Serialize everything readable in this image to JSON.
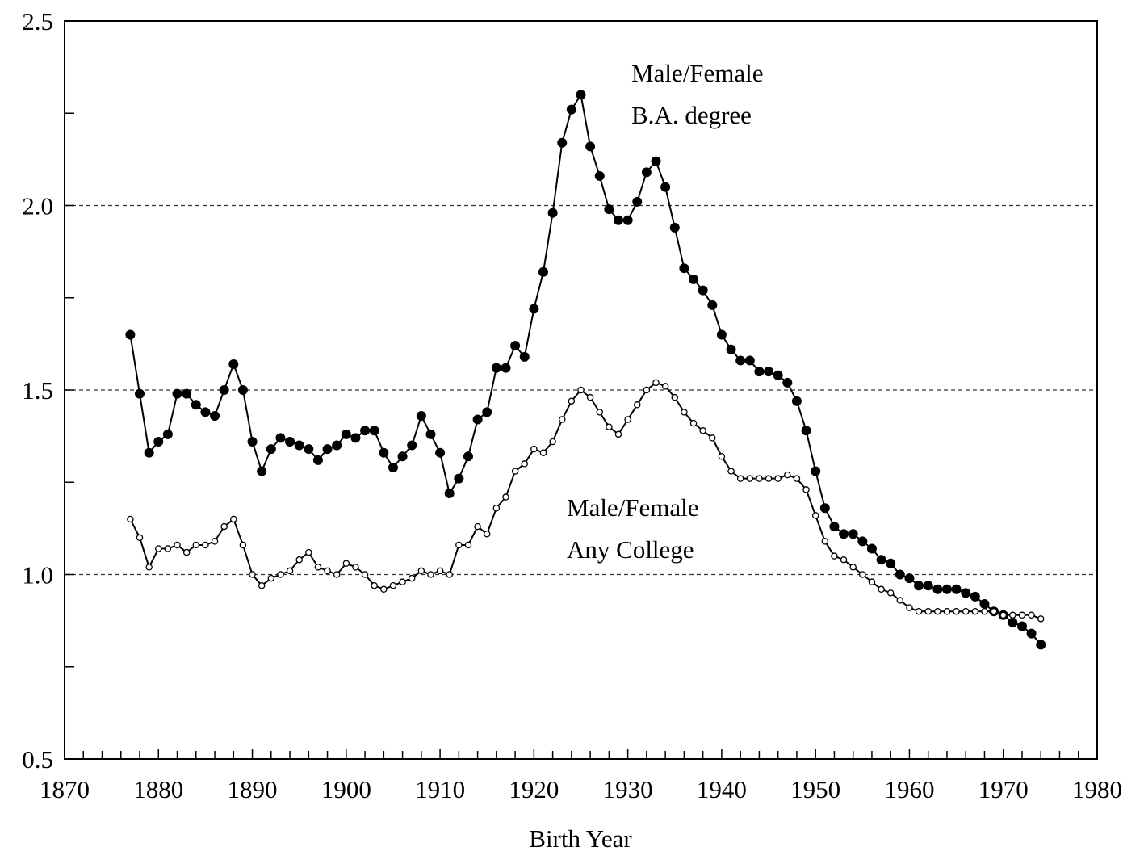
{
  "chart_data": {
    "type": "line",
    "xlabel": "Birth Year",
    "ylabel": "",
    "xlim": [
      1870,
      1980
    ],
    "ylim": [
      0.5,
      2.5
    ],
    "x_ticks": [
      "1870",
      "1880",
      "1890",
      "1900",
      "1910",
      "1920",
      "1930",
      "1940",
      "1950",
      "1960",
      "1970",
      "1980"
    ],
    "y_ticks": [
      "0.5",
      "1.0",
      "1.5",
      "2.0",
      "2.5"
    ],
    "y_gridlines": [
      1.0,
      1.5,
      2.0
    ],
    "grid": "dashed horizontal at 1.0, 1.5, 2.0",
    "x": [
      1877,
      1878,
      1879,
      1880,
      1881,
      1882,
      1883,
      1884,
      1885,
      1886,
      1887,
      1888,
      1889,
      1890,
      1891,
      1892,
      1893,
      1894,
      1895,
      1896,
      1897,
      1898,
      1899,
      1900,
      1901,
      1902,
      1903,
      1904,
      1905,
      1906,
      1907,
      1908,
      1909,
      1910,
      1911,
      1912,
      1913,
      1914,
      1915,
      1916,
      1917,
      1918,
      1919,
      1920,
      1921,
      1922,
      1923,
      1924,
      1925,
      1926,
      1927,
      1928,
      1929,
      1930,
      1931,
      1932,
      1933,
      1934,
      1935,
      1936,
      1937,
      1938,
      1939,
      1940,
      1941,
      1942,
      1943,
      1944,
      1945,
      1946,
      1947,
      1948,
      1949,
      1950,
      1951,
      1952,
      1953,
      1954,
      1955,
      1956,
      1957,
      1958,
      1959,
      1960,
      1961,
      1962,
      1963,
      1964,
      1965,
      1966,
      1967,
      1968,
      1969,
      1970,
      1971,
      1972,
      1973,
      1974
    ],
    "annotations": [
      {
        "lines": [
          "Male/Female",
          "B.A. degree"
        ],
        "series": 0
      },
      {
        "lines": [
          "Male/Female",
          "Any College"
        ],
        "series": 1
      }
    ],
    "series": [
      {
        "marker": "filled-circle",
        "color": "#000000",
        "values": [
          1.65,
          1.49,
          1.33,
          1.36,
          1.38,
          1.49,
          1.49,
          1.46,
          1.44,
          1.43,
          1.5,
          1.57,
          1.5,
          1.36,
          1.28,
          1.34,
          1.37,
          1.36,
          1.35,
          1.34,
          1.31,
          1.34,
          1.35,
          1.38,
          1.37,
          1.39,
          1.39,
          1.33,
          1.29,
          1.32,
          1.35,
          1.43,
          1.38,
          1.33,
          1.22,
          1.26,
          1.32,
          1.42,
          1.44,
          1.56,
          1.56,
          1.62,
          1.59,
          1.72,
          1.82,
          1.98,
          2.17,
          2.26,
          2.3,
          2.16,
          2.08,
          1.99,
          1.96,
          1.96,
          2.01,
          2.09,
          2.12,
          2.05,
          1.94,
          1.83,
          1.8,
          1.77,
          1.73,
          1.65,
          1.61,
          1.58,
          1.58,
          1.55,
          1.55,
          1.54,
          1.52,
          1.47,
          1.39,
          1.28,
          1.18,
          1.13,
          1.11,
          1.11,
          1.09,
          1.07,
          1.04,
          1.03,
          1.0,
          0.99,
          0.97,
          0.97,
          0.96,
          0.96,
          0.96,
          0.95,
          0.94,
          0.92,
          0.9,
          0.89,
          0.87,
          0.86,
          0.84,
          0.81
        ]
      },
      {
        "marker": "open-circle",
        "color": "#000000",
        "values": [
          1.15,
          1.1,
          1.02,
          1.07,
          1.07,
          1.08,
          1.06,
          1.08,
          1.08,
          1.09,
          1.13,
          1.15,
          1.08,
          1.0,
          0.97,
          0.99,
          1.0,
          1.01,
          1.04,
          1.06,
          1.02,
          1.01,
          1.0,
          1.03,
          1.02,
          1.0,
          0.97,
          0.96,
          0.97,
          0.98,
          0.99,
          1.01,
          1.0,
          1.01,
          1.0,
          1.08,
          1.08,
          1.13,
          1.11,
          1.18,
          1.21,
          1.28,
          1.3,
          1.34,
          1.33,
          1.36,
          1.42,
          1.47,
          1.5,
          1.48,
          1.44,
          1.4,
          1.38,
          1.42,
          1.46,
          1.5,
          1.52,
          1.51,
          1.48,
          1.44,
          1.41,
          1.39,
          1.37,
          1.32,
          1.28,
          1.26,
          1.26,
          1.26,
          1.26,
          1.26,
          1.27,
          1.26,
          1.23,
          1.16,
          1.09,
          1.05,
          1.04,
          1.02,
          1.0,
          0.98,
          0.96,
          0.95,
          0.93,
          0.91,
          0.9,
          0.9,
          0.9,
          0.9,
          0.9,
          0.9,
          0.9,
          0.9,
          0.9,
          0.89,
          0.89,
          0.89,
          0.89,
          0.88
        ]
      }
    ]
  }
}
